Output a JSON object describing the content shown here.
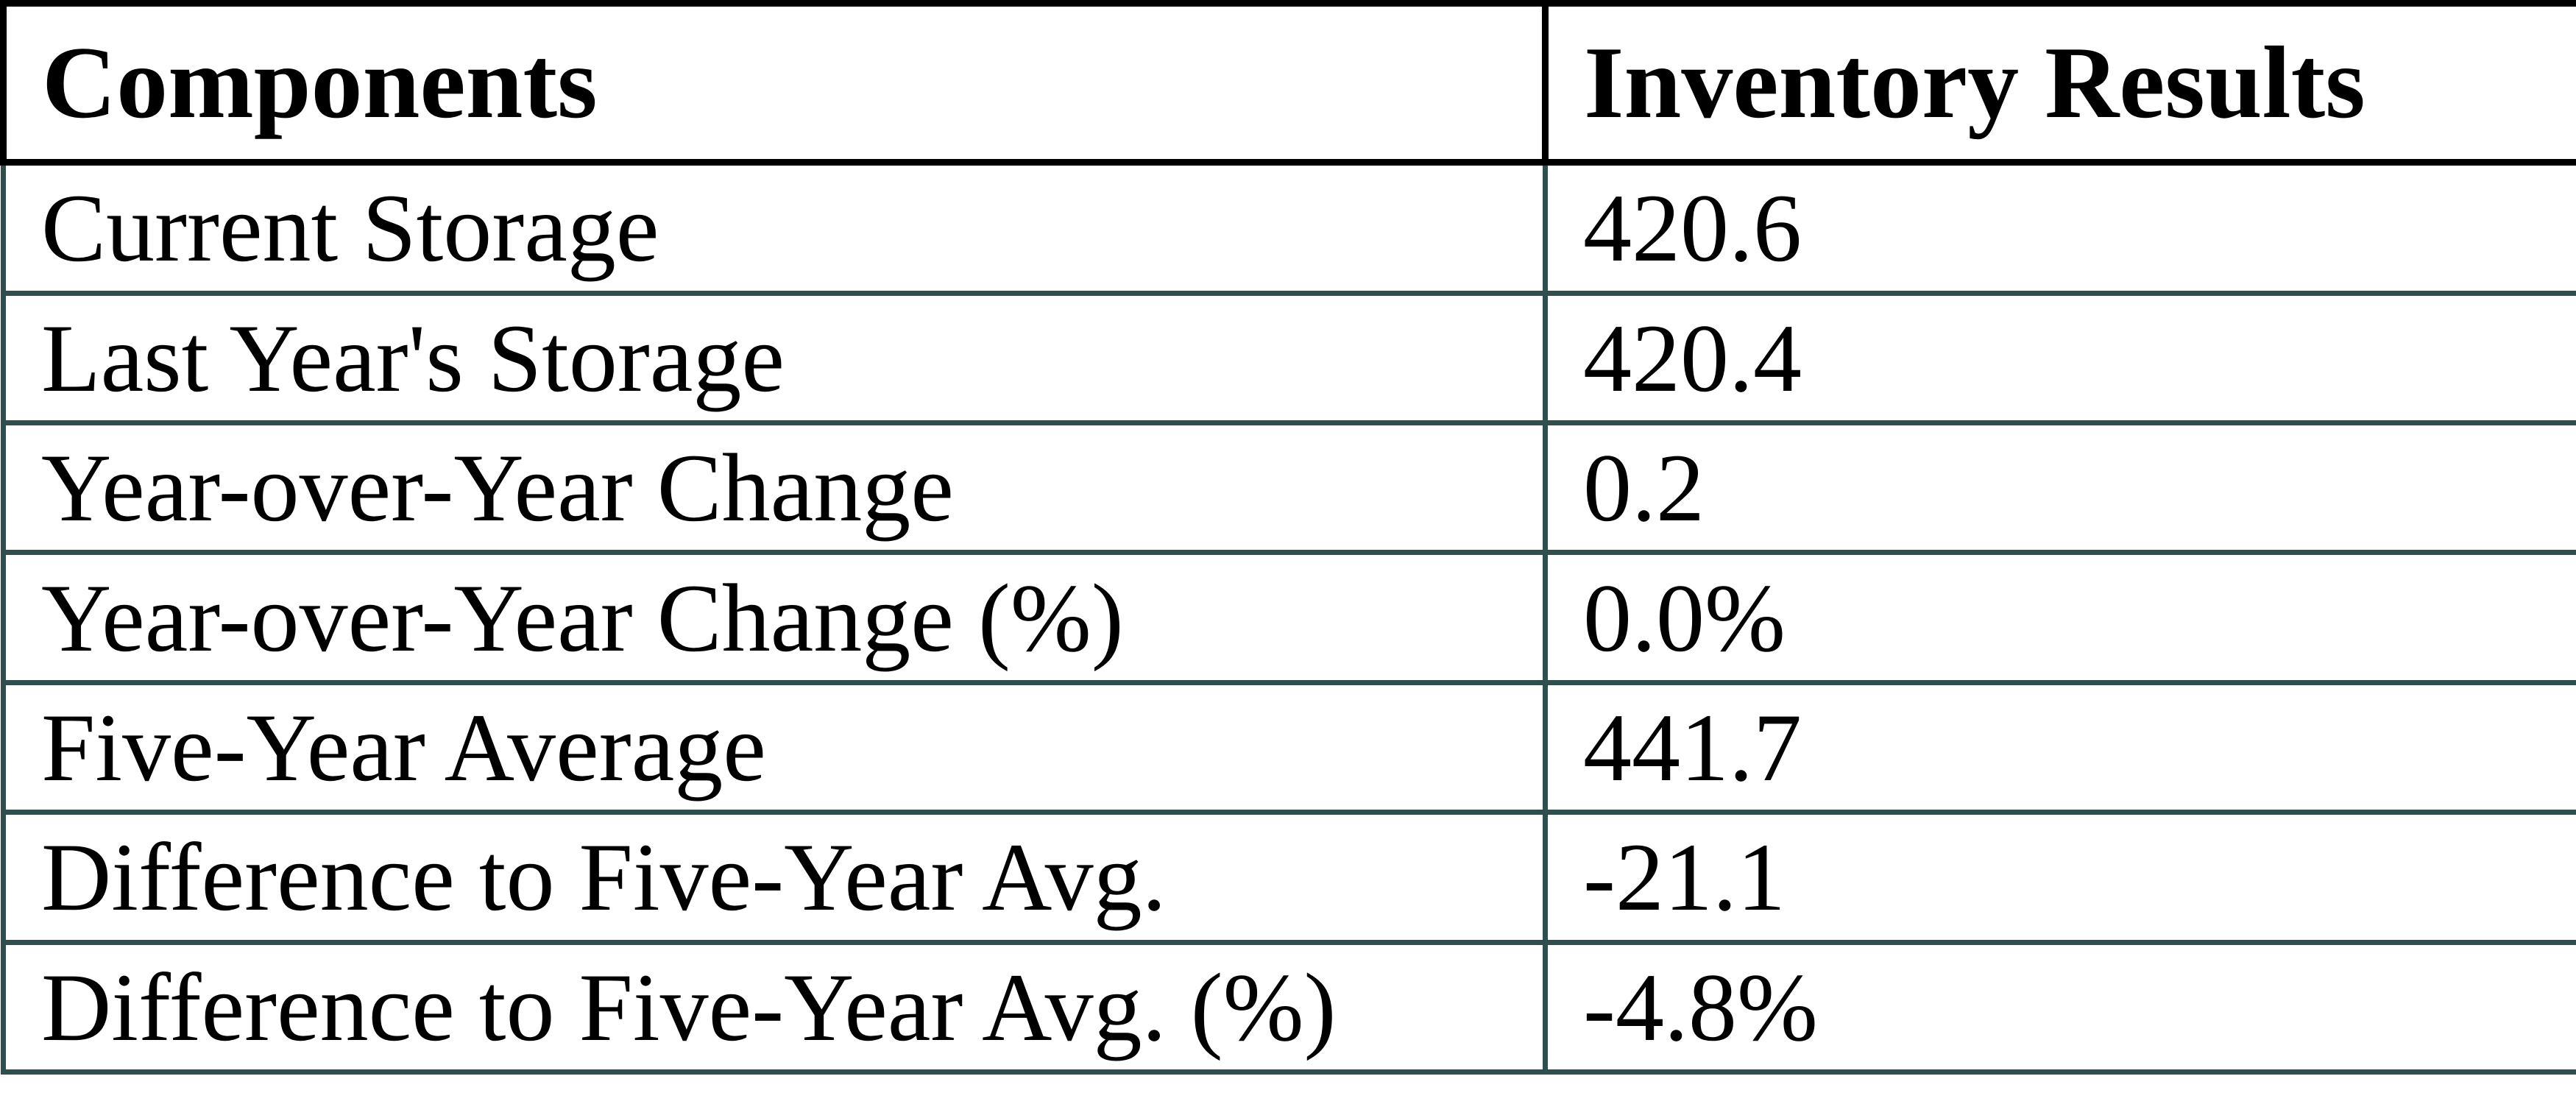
{
  "table": {
    "columns": [
      "Components",
      "Inventory Results"
    ],
    "rows": [
      {
        "label": "Current Storage",
        "value": "420.6"
      },
      {
        "label": "Last Year's Storage",
        "value": "420.4"
      },
      {
        "label": "Year-over-Year Change",
        "value": "0.2"
      },
      {
        "label": "Year-over-Year Change (%)",
        "value": "0.0%"
      },
      {
        "label": "Five-Year Average",
        "value": "441.7"
      },
      {
        "label": "Difference to Five-Year Avg.",
        "value": "-21.1"
      },
      {
        "label": "Difference to Five-Year Avg. (%)",
        "value": "-4.8%"
      }
    ],
    "colors": {
      "header_border": "#000000",
      "body_border": "#2F4F4F",
      "text": "#000000",
      "background": "#FFFFFF"
    }
  },
  "chart_data": {
    "type": "table",
    "title": "",
    "columns": [
      "Components",
      "Inventory Results"
    ],
    "rows": [
      [
        "Current Storage",
        "420.6"
      ],
      [
        "Last Year's Storage",
        "420.4"
      ],
      [
        "Year-over-Year Change",
        "0.2"
      ],
      [
        "Year-over-Year Change (%)",
        "0.0%"
      ],
      [
        "Five-Year Average",
        "441.7"
      ],
      [
        "Difference to Five-Year Avg.",
        "-21.1"
      ],
      [
        "Difference to Five-Year Avg. (%)",
        "-4.8%"
      ]
    ],
    "numeric_values": [
      420.6,
      420.4,
      0.2,
      0.0,
      441.7,
      -21.1,
      -4.8
    ],
    "value_units": [
      "",
      "",
      "",
      "%",
      "",
      "",
      "%"
    ],
    "layout": {
      "grid": true,
      "header_row": true,
      "legend": "none"
    }
  }
}
